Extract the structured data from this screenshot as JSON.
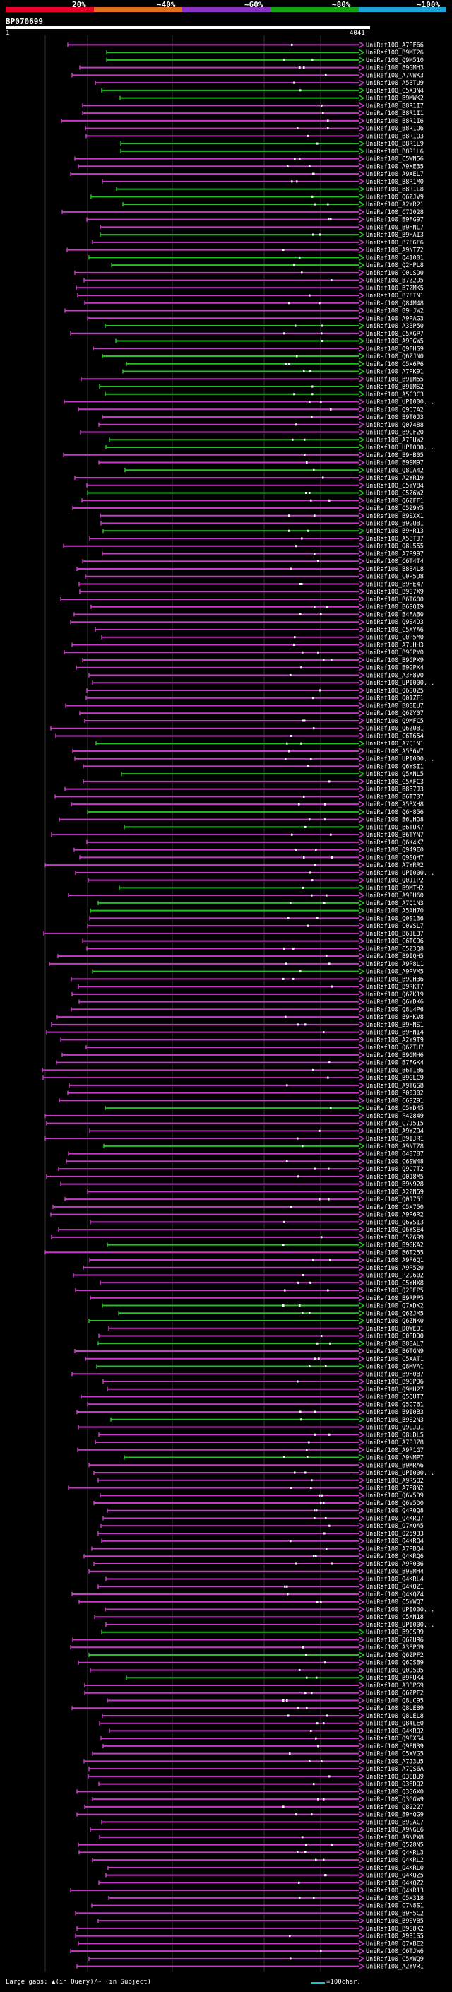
{
  "legend": {
    "segments": [
      {
        "label": "20%",
        "color": "#e8002a"
      },
      {
        "label": "~40%",
        "color": "#e36f1e"
      },
      {
        "label": "~60%",
        "color": "#8b31c4"
      },
      {
        "label": "~80%",
        "color": "#14a414"
      },
      {
        "label": "~100%",
        "color": "#1aa7d6"
      }
    ]
  },
  "query": {
    "id": "BP070699",
    "start": "1",
    "end": "4041"
  },
  "colors": {
    "purple": "#c63ac6",
    "green": "#22c022",
    "guide": "#333333"
  },
  "hits": [
    {
      "id": "UniRef100_A7PF66",
      "c": "p"
    },
    {
      "id": "UniRef100_B9MT26",
      "c": "g"
    },
    {
      "id": "UniRef100_Q9M510",
      "c": "g"
    },
    {
      "id": "UniRef100_B9GMH3",
      "c": "p"
    },
    {
      "id": "UniRef100_A7NWK3",
      "c": "p"
    },
    {
      "id": "UniRef100_A5BTU9",
      "c": "p"
    },
    {
      "id": "UniRef100_C5X3N4",
      "c": "g"
    },
    {
      "id": "UniRef100_B9MWK2",
      "c": "g"
    },
    {
      "id": "UniRef100_B8R1I7",
      "c": "p"
    },
    {
      "id": "UniRef100_B8R1I1",
      "c": "p"
    },
    {
      "id": "UniRef100_B8R1I6",
      "c": "p"
    },
    {
      "id": "UniRef100_B8R1O6",
      "c": "p"
    },
    {
      "id": "UniRef100_B8R1O3",
      "c": "p"
    },
    {
      "id": "UniRef100_B8R1L9",
      "c": "g"
    },
    {
      "id": "UniRef100_B8R1L6",
      "c": "g"
    },
    {
      "id": "UniRef100_C5WN56",
      "c": "p"
    },
    {
      "id": "UniRef100_A9XE35",
      "c": "p"
    },
    {
      "id": "UniRef100_A9XEL7",
      "c": "p"
    },
    {
      "id": "UniRef100_B8R1M0",
      "c": "p"
    },
    {
      "id": "UniRef100_B8R1L8",
      "c": "g"
    },
    {
      "id": "UniRef100_Q6ZJV9",
      "c": "g"
    },
    {
      "id": "UniRef100_A2YR21",
      "c": "g"
    },
    {
      "id": "UniRef100_C7J028",
      "c": "p"
    },
    {
      "id": "UniRef100_B9FG97",
      "c": "p"
    },
    {
      "id": "UniRef100_B9HNL7",
      "c": "p"
    },
    {
      "id": "UniRef100_B9HAI3",
      "c": "g"
    },
    {
      "id": "UniRef100_B7FGF6",
      "c": "p"
    },
    {
      "id": "UniRef100_A9NT72",
      "c": "p"
    },
    {
      "id": "UniRef100_Q41001",
      "c": "g"
    },
    {
      "id": "UniRef100_Q2HPL8",
      "c": "g"
    },
    {
      "id": "UniRef100_C0LSD0",
      "c": "p"
    },
    {
      "id": "UniRef100_B7Z2D5",
      "c": "p"
    },
    {
      "id": "UniRef100_B7ZMK5",
      "c": "p"
    },
    {
      "id": "UniRef100_B7FTN1",
      "c": "p"
    },
    {
      "id": "UniRef100_Q84M48",
      "c": "p"
    },
    {
      "id": "UniRef100_B9HJW2",
      "c": "p"
    },
    {
      "id": "UniRef100_A9PAG3",
      "c": "p"
    },
    {
      "id": "UniRef100_A3BP50",
      "c": "g"
    },
    {
      "id": "UniRef100_C5XGP7",
      "c": "p"
    },
    {
      "id": "UniRef100_A9PGW5",
      "c": "g"
    },
    {
      "id": "UniRef100_Q9FHG9",
      "c": "p"
    },
    {
      "id": "UniRef100_Q6ZJN0",
      "c": "g"
    },
    {
      "id": "UniRef100_C5X6P6",
      "c": "g"
    },
    {
      "id": "UniRef100_A7PK91",
      "c": "g"
    },
    {
      "id": "UniRef100_B9IM55",
      "c": "p"
    },
    {
      "id": "UniRef100_B9IMS2",
      "c": "g"
    },
    {
      "id": "UniRef100_A5C3C3",
      "c": "g"
    },
    {
      "id": "UniRef100_UPI000...",
      "c": "p"
    },
    {
      "id": "UniRef100_Q9C7A2",
      "c": "p"
    },
    {
      "id": "UniRef100_B9T0J3",
      "c": "p"
    },
    {
      "id": "UniRef100_Q07488",
      "c": "p"
    },
    {
      "id": "UniRef100_B9GF20",
      "c": "p"
    },
    {
      "id": "UniRef100_A7PUW2",
      "c": "g"
    },
    {
      "id": "UniRef100_UPI000...",
      "c": "g"
    },
    {
      "id": "UniRef100_B9HB05",
      "c": "p"
    },
    {
      "id": "UniRef100_B9SM97",
      "c": "p"
    },
    {
      "id": "UniRef100_Q8LA42",
      "c": "g"
    },
    {
      "id": "UniRef100_A2YR19",
      "c": "p"
    },
    {
      "id": "UniRef100_C5YV84",
      "c": "p"
    },
    {
      "id": "UniRef100_C5Z6W2",
      "c": "g"
    },
    {
      "id": "UniRef100_Q6ZFF1",
      "c": "p"
    },
    {
      "id": "UniRef100_C5Z9Y5",
      "c": "p"
    },
    {
      "id": "UniRef100_B9SXX1",
      "c": "p"
    },
    {
      "id": "UniRef100_B9GQB1",
      "c": "p"
    },
    {
      "id": "UniRef100_B9HR13",
      "c": "g"
    },
    {
      "id": "UniRef100_A5BTJ7",
      "c": "p"
    },
    {
      "id": "UniRef100_Q8L555",
      "c": "p"
    },
    {
      "id": "UniRef100_A7P997",
      "c": "p"
    },
    {
      "id": "UniRef100_C6T4T4",
      "c": "p"
    },
    {
      "id": "UniRef100_B8B4L8",
      "c": "p"
    },
    {
      "id": "UniRef100_C0P5D8",
      "c": "p"
    },
    {
      "id": "UniRef100_B9HE47",
      "c": "p"
    },
    {
      "id": "UniRef100_B9S7X9",
      "c": "p"
    },
    {
      "id": "UniRef100_B6TG00",
      "c": "p"
    },
    {
      "id": "UniRef100_B6SQI9",
      "c": "p"
    },
    {
      "id": "UniRef100_B4FAB0",
      "c": "p"
    },
    {
      "id": "UniRef100_Q9S4D3",
      "c": "p"
    },
    {
      "id": "UniRef100_C5XYA6",
      "c": "p"
    },
    {
      "id": "UniRef100_C0P5M0",
      "c": "p"
    },
    {
      "id": "UniRef100_A7UHH3",
      "c": "p"
    },
    {
      "id": "UniRef100_B9GPY0",
      "c": "p"
    },
    {
      "id": "UniRef100_B9GPX9",
      "c": "p"
    },
    {
      "id": "UniRef100_B9GPX4",
      "c": "p"
    },
    {
      "id": "UniRef100_A3F8V0",
      "c": "p"
    },
    {
      "id": "UniRef100_UPI000...",
      "c": "p"
    },
    {
      "id": "UniRef100_Q6S0Z5",
      "c": "p"
    },
    {
      "id": "UniRef100_Q01ZF1",
      "c": "p"
    },
    {
      "id": "UniRef100_B8BEU7",
      "c": "p"
    },
    {
      "id": "UniRef100_Q6ZY07",
      "c": "p"
    },
    {
      "id": "UniRef100_Q9MFC5",
      "c": "p"
    },
    {
      "id": "UniRef100_Q6Z0B1",
      "c": "p"
    },
    {
      "id": "UniRef100_C6T654",
      "c": "p"
    },
    {
      "id": "UniRef100_A7Q1N1",
      "c": "g"
    },
    {
      "id": "UniRef100_A5B6V7",
      "c": "p"
    },
    {
      "id": "UniRef100_UPI000...",
      "c": "p"
    },
    {
      "id": "UniRef100_Q6YSI1",
      "c": "p"
    },
    {
      "id": "UniRef100_Q5XNL5",
      "c": "g"
    },
    {
      "id": "UniRef100_C5XFC3",
      "c": "p"
    },
    {
      "id": "UniRef100_B8B7J3",
      "c": "p"
    },
    {
      "id": "UniRef100_B6T737",
      "c": "p"
    },
    {
      "id": "UniRef100_A5BXH8",
      "c": "p"
    },
    {
      "id": "UniRef100_Q6H856",
      "c": "g"
    },
    {
      "id": "UniRef100_B6UHO8",
      "c": "p"
    },
    {
      "id": "UniRef100_B6TUK7",
      "c": "g"
    },
    {
      "id": "UniRef100_B6TYN7",
      "c": "p"
    },
    {
      "id": "UniRef100_Q6K4K7",
      "c": "p"
    },
    {
      "id": "UniRef100_Q949E0",
      "c": "p"
    },
    {
      "id": "UniRef100_Q9SQH7",
      "c": "p"
    },
    {
      "id": "UniRef100_A7YRR2",
      "c": "p"
    },
    {
      "id": "UniRef100_UPI000...",
      "c": "p"
    },
    {
      "id": "UniRef100_Q0JIP2",
      "c": "p"
    },
    {
      "id": "UniRef100_B9MTH2",
      "c": "g"
    },
    {
      "id": "UniRef100_A9PH60",
      "c": "p"
    },
    {
      "id": "UniRef100_A7Q1N3",
      "c": "g"
    },
    {
      "id": "UniRef100_A5AH70",
      "c": "g"
    },
    {
      "id": "UniRef100_Q0S136",
      "c": "p"
    },
    {
      "id": "UniRef100_C0VSL7",
      "c": "p"
    },
    {
      "id": "UniRef100_B6JL37",
      "c": "p"
    },
    {
      "id": "UniRef100_C6TCD6",
      "c": "p"
    },
    {
      "id": "UniRef100_C5Z3Q8",
      "c": "p"
    },
    {
      "id": "UniRef100_B9IQH5",
      "c": "p"
    },
    {
      "id": "UniRef100_A9P8L1",
      "c": "p"
    },
    {
      "id": "UniRef100_A9PVM5",
      "c": "g"
    },
    {
      "id": "UniRef100_B9GH36",
      "c": "p"
    },
    {
      "id": "UniRef100_B9RKT7",
      "c": "p"
    },
    {
      "id": "UniRef100_Q6ZK19",
      "c": "p"
    },
    {
      "id": "UniRef100_Q6YDK6",
      "c": "p"
    },
    {
      "id": "UniRef100_Q8L4P6",
      "c": "p"
    },
    {
      "id": "UniRef100_B9HKV8",
      "c": "p"
    },
    {
      "id": "UniRef100_B9HNS1",
      "c": "p"
    },
    {
      "id": "UniRef100_B9HNI4",
      "c": "p"
    },
    {
      "id": "UniRef100_A2Y9T9",
      "c": "p"
    },
    {
      "id": "UniRef100_Q6ZTU7",
      "c": "p"
    },
    {
      "id": "UniRef100_B9GMH6",
      "c": "p"
    },
    {
      "id": "UniRef100_B7FGK4",
      "c": "p"
    },
    {
      "id": "UniRef100_B6T186",
      "c": "p"
    },
    {
      "id": "UniRef100_B9GLC9",
      "c": "p"
    },
    {
      "id": "UniRef100_A9TGS8",
      "c": "p"
    },
    {
      "id": "UniRef100_P00302",
      "c": "p"
    },
    {
      "id": "UniRef100_C6SZ91",
      "c": "p"
    },
    {
      "id": "UniRef100_C5YD45",
      "c": "g"
    },
    {
      "id": "UniRef100_P42849",
      "c": "p"
    },
    {
      "id": "UniRef100_C7J515",
      "c": "p"
    },
    {
      "id": "UniRef100_A9YZD4",
      "c": "p"
    },
    {
      "id": "UniRef100_B9IJR1",
      "c": "p"
    },
    {
      "id": "UniRef100_A9NTZ8",
      "c": "g"
    },
    {
      "id": "UniRef100_O48787",
      "c": "p"
    },
    {
      "id": "UniRef100_C6SW48",
      "c": "p"
    },
    {
      "id": "UniRef100_Q9C7T2",
      "c": "p"
    },
    {
      "id": "UniRef100_Q0J8M5",
      "c": "p"
    },
    {
      "id": "UniRef100_B9N928",
      "c": "p"
    },
    {
      "id": "UniRef100_A2ZN59",
      "c": "p"
    },
    {
      "id": "UniRef100_Q0J751",
      "c": "p"
    },
    {
      "id": "UniRef100_C5X750",
      "c": "p"
    },
    {
      "id": "UniRef100_A9P6R2",
      "c": "p"
    },
    {
      "id": "UniRef100_Q6VSI3",
      "c": "p"
    },
    {
      "id": "UniRef100_Q6YSE4",
      "c": "p"
    },
    {
      "id": "UniRef100_C5Z699",
      "c": "p"
    },
    {
      "id": "UniRef100_B9GKA2",
      "c": "g"
    },
    {
      "id": "UniRef100_B6T255",
      "c": "p"
    },
    {
      "id": "UniRef100_A9P6Q1",
      "c": "p"
    },
    {
      "id": "UniRef100_A9P520",
      "c": "p"
    },
    {
      "id": "UniRef100_P29602",
      "c": "p"
    },
    {
      "id": "UniRef100_C5YHX8",
      "c": "p"
    },
    {
      "id": "UniRef100_Q2PEP5",
      "c": "p"
    },
    {
      "id": "UniRef100_B9RPP5",
      "c": "p"
    },
    {
      "id": "UniRef100_Q7XDK2",
      "c": "g"
    },
    {
      "id": "UniRef100_Q6ZJM5",
      "c": "g"
    },
    {
      "id": "UniRef100_Q6ZNK0",
      "c": "g"
    },
    {
      "id": "UniRef100_D0WED1",
      "c": "p"
    },
    {
      "id": "UniRef100_C0PDD0",
      "c": "p"
    },
    {
      "id": "UniRef100_B8BAL7",
      "c": "g"
    },
    {
      "id": "UniRef100_B6TGN9",
      "c": "p"
    },
    {
      "id": "UniRef100_C5XAT1",
      "c": "p"
    },
    {
      "id": "UniRef100_Q8MVA1",
      "c": "g"
    },
    {
      "id": "UniRef100_B9H0B7",
      "c": "p"
    },
    {
      "id": "UniRef100_B9GPD6",
      "c": "p"
    },
    {
      "id": "UniRef100_Q9MU27",
      "c": "p"
    },
    {
      "id": "UniRef100_Q5QUT7",
      "c": "p"
    },
    {
      "id": "UniRef100_Q5C761",
      "c": "p"
    },
    {
      "id": "UniRef100_B9I0B3",
      "c": "p"
    },
    {
      "id": "UniRef100_B9S2N3",
      "c": "g"
    },
    {
      "id": "UniRef100_Q9LJU1",
      "c": "p"
    },
    {
      "id": "UniRef100_Q8LDL5",
      "c": "p"
    },
    {
      "id": "UniRef100_A7PJZ8",
      "c": "p"
    },
    {
      "id": "UniRef100_A9P1G7",
      "c": "p"
    },
    {
      "id": "UniRef100_A9NMP7",
      "c": "g"
    },
    {
      "id": "UniRef100_B9MRA6",
      "c": "p"
    },
    {
      "id": "UniRef100_UPI000...",
      "c": "p"
    },
    {
      "id": "UniRef100_A9RSQ2",
      "c": "p"
    },
    {
      "id": "UniRef100_A7P8N2",
      "c": "p"
    },
    {
      "id": "UniRef100_Q6V5D9",
      "c": "p"
    },
    {
      "id": "UniRef100_Q6V5D0",
      "c": "p"
    },
    {
      "id": "UniRef100_Q4R0Q8",
      "c": "p"
    },
    {
      "id": "UniRef100_Q4KRQ7",
      "c": "p"
    },
    {
      "id": "UniRef100_Q7XQA5",
      "c": "p"
    },
    {
      "id": "UniRef100_Q25933",
      "c": "p"
    },
    {
      "id": "UniRef100_Q4KRQ4",
      "c": "p"
    },
    {
      "id": "UniRef100_A7PBQ4",
      "c": "p"
    },
    {
      "id": "UniRef100_Q4KRQ6",
      "c": "p"
    },
    {
      "id": "UniRef100_A9P036",
      "c": "p"
    },
    {
      "id": "UniRef100_B9SMH4",
      "c": "p"
    },
    {
      "id": "UniRef100_Q4KRL4",
      "c": "p"
    },
    {
      "id": "UniRef100_Q4KQZ1",
      "c": "p"
    },
    {
      "id": "UniRef100_Q4KQZ4",
      "c": "p"
    },
    {
      "id": "UniRef100_C5YWQ7",
      "c": "p"
    },
    {
      "id": "UniRef100_UPI000...",
      "c": "p"
    },
    {
      "id": "UniRef100_C5XN18",
      "c": "p"
    },
    {
      "id": "UniRef100_UPI000...",
      "c": "p"
    },
    {
      "id": "UniRef100_B9GSR9",
      "c": "g"
    },
    {
      "id": "UniRef100_Q6ZUR6",
      "c": "p"
    },
    {
      "id": "UniRef100_A3BPG9",
      "c": "p"
    },
    {
      "id": "UniRef100_Q6ZPF2",
      "c": "g"
    },
    {
      "id": "UniRef100_Q6CSB9",
      "c": "p"
    },
    {
      "id": "UniRef100_Q0D505",
      "c": "p"
    },
    {
      "id": "UniRef100_B9FUK4",
      "c": "g"
    },
    {
      "id": "UniRef100_A3BPG9",
      "c": "p"
    },
    {
      "id": "UniRef100_Q6ZPF2",
      "c": "p"
    },
    {
      "id": "UniRef100_Q8LC95",
      "c": "p"
    },
    {
      "id": "UniRef100_Q8LE89",
      "c": "p"
    },
    {
      "id": "UniRef100_Q8LEL8",
      "c": "p"
    },
    {
      "id": "UniRef100_Q84LE0",
      "c": "p"
    },
    {
      "id": "UniRef100_Q4KRQ2",
      "c": "p"
    },
    {
      "id": "UniRef100_Q9FXS4",
      "c": "p"
    },
    {
      "id": "UniRef100_Q9FN39",
      "c": "p"
    },
    {
      "id": "UniRef100_C5XVG5",
      "c": "p"
    },
    {
      "id": "UniRef100_A7J3U5",
      "c": "p"
    },
    {
      "id": "UniRef100_A7QS6A",
      "c": "p"
    },
    {
      "id": "UniRef100_Q3EBU9",
      "c": "p"
    },
    {
      "id": "UniRef100_Q3EDQ2",
      "c": "p"
    },
    {
      "id": "UniRef100_Q3GGX0",
      "c": "p"
    },
    {
      "id": "UniRef100_Q3GGW9",
      "c": "p"
    },
    {
      "id": "UniRef100_Q82227",
      "c": "p"
    },
    {
      "id": "UniRef100_B9HQG9",
      "c": "p"
    },
    {
      "id": "UniRef100_B9SAC7",
      "c": "p"
    },
    {
      "id": "UniRef100_A9NGL6",
      "c": "p"
    },
    {
      "id": "UniRef100_A9NPX8",
      "c": "p"
    },
    {
      "id": "UniRef100_Q528N5",
      "c": "p"
    },
    {
      "id": "UniRef100_Q4KRL3",
      "c": "p"
    },
    {
      "id": "UniRef100_Q4KRL2",
      "c": "p"
    },
    {
      "id": "UniRef100_Q4KRL0",
      "c": "p"
    },
    {
      "id": "UniRef100_Q4KQZ5",
      "c": "p"
    },
    {
      "id": "UniRef100_Q4KQZ2",
      "c": "p"
    },
    {
      "id": "UniRef100_Q4KR13",
      "c": "p"
    },
    {
      "id": "UniRef100_C5X318",
      "c": "p"
    },
    {
      "id": "UniRef100_C7N8S1",
      "c": "p"
    },
    {
      "id": "UniRef100_B9H5C2",
      "c": "p"
    },
    {
      "id": "UniRef100_B9SVB5",
      "c": "p"
    },
    {
      "id": "UniRef100_B9S8K2",
      "c": "p"
    },
    {
      "id": "UniRef100_A9S1S5",
      "c": "p"
    },
    {
      "id": "UniRef100_Q7XBE2",
      "c": "p"
    },
    {
      "id": "UniRef100_C6TJW6",
      "c": "p"
    },
    {
      "id": "UniRef100_C5XWQ9",
      "c": "p"
    },
    {
      "id": "UniRef100_A2YVR1",
      "c": "p"
    }
  ],
  "footer": {
    "left": "Large gaps: ▲(in Query)/~ (in Subject)",
    "right": "=100char."
  }
}
